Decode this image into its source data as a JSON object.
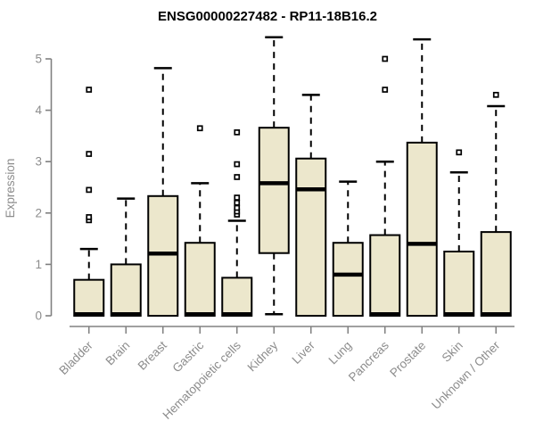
{
  "chart_data": {
    "type": "boxplot",
    "title": "ENSG00000227482 - RP11-18B16.2",
    "xlabel": "",
    "ylabel": "Expression",
    "yticks": [
      0,
      1,
      2,
      3,
      4,
      5
    ],
    "ylim": [
      -0.2,
      5.5
    ],
    "grid": false,
    "legend": "none",
    "outlier_marker": "open-square",
    "categories": [
      "Bladder",
      "Brain",
      "Breast",
      "Gastric",
      "Hematopoietic cells",
      "Kidney",
      "Liver",
      "Lung",
      "Pancreas",
      "Prostate",
      "Skin",
      "Unknown / Other"
    ],
    "series": [
      {
        "name": "Bladder",
        "q1": 0,
        "median": 0.03,
        "q3": 0.7,
        "whisker_low": 0,
        "whisker_high": 1.3,
        "outliers": [
          1.86,
          1.92,
          2.45,
          3.15,
          4.4
        ]
      },
      {
        "name": "Brain",
        "q1": 0,
        "median": 0.03,
        "q3": 1.0,
        "whisker_low": 0,
        "whisker_high": 2.28,
        "outliers": []
      },
      {
        "name": "Breast",
        "q1": 0,
        "median": 1.21,
        "q3": 2.33,
        "whisker_low": 0,
        "whisker_high": 4.82,
        "outliers": []
      },
      {
        "name": "Gastric",
        "q1": 0,
        "median": 0.03,
        "q3": 1.42,
        "whisker_low": 0,
        "whisker_high": 2.58,
        "outliers": [
          3.65
        ]
      },
      {
        "name": "Hematopoietic cells",
        "q1": 0,
        "median": 0.03,
        "q3": 0.74,
        "whisker_low": 0,
        "whisker_high": 1.85,
        "outliers": [
          1.97,
          2.03,
          2.1,
          2.2,
          2.3,
          2.7,
          2.95,
          3.57
        ]
      },
      {
        "name": "Kidney",
        "q1": 1.22,
        "median": 2.58,
        "q3": 3.66,
        "whisker_low": 0.03,
        "whisker_high": 5.42,
        "outliers": []
      },
      {
        "name": "Liver",
        "q1": 0,
        "median": 2.46,
        "q3": 3.06,
        "whisker_low": 0,
        "whisker_high": 4.3,
        "outliers": []
      },
      {
        "name": "Lung",
        "q1": 0,
        "median": 0.8,
        "q3": 1.42,
        "whisker_low": 0,
        "whisker_high": 2.61,
        "outliers": []
      },
      {
        "name": "Pancreas",
        "q1": 0,
        "median": 0.03,
        "q3": 1.57,
        "whisker_low": 0,
        "whisker_high": 3.0,
        "outliers": [
          4.4,
          5.0
        ]
      },
      {
        "name": "Prostate",
        "q1": 0,
        "median": 1.4,
        "q3": 3.37,
        "whisker_low": 0,
        "whisker_high": 5.38,
        "outliers": []
      },
      {
        "name": "Skin",
        "q1": 0,
        "median": 0.03,
        "q3": 1.25,
        "whisker_low": 0,
        "whisker_high": 2.79,
        "outliers": [
          3.18
        ]
      },
      {
        "name": "Unknown / Other",
        "q1": 0,
        "median": 0.03,
        "q3": 1.63,
        "whisker_low": 0,
        "whisker_high": 4.08,
        "outliers": [
          4.3
        ]
      }
    ],
    "style": {
      "background": "#FFFFFF",
      "box_fill": "#ECE7CC",
      "line_color": "#000000",
      "axis_color": "#808080",
      "text_color": "#8C8C8C",
      "title_color": "#000000"
    }
  }
}
